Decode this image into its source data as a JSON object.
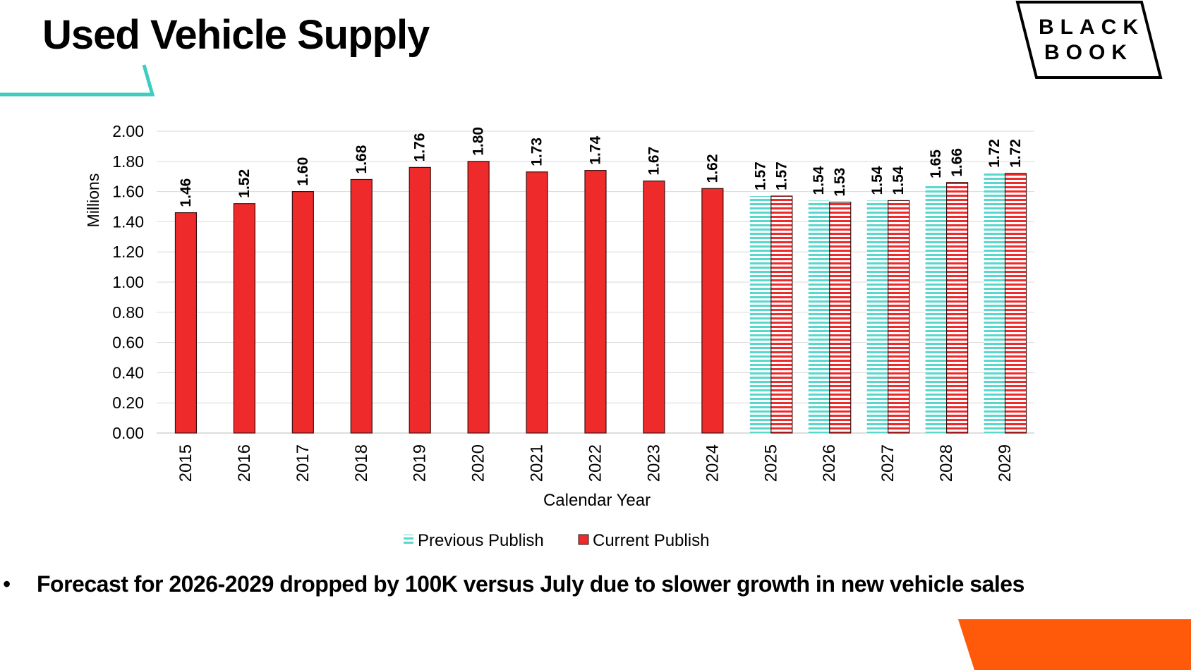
{
  "slide": {
    "title": "Used Vehicle Supply",
    "bullet_symbol": "•",
    "bullet": "Forecast for 2026-2029 dropped by 100K versus July due to slower growth in new vehicle sales"
  },
  "logo": {
    "line1": "BLACK",
    "line2": "BOOK"
  },
  "colors": {
    "accent_teal": "#3ecdc0",
    "current_red": "#ee2a2a",
    "orange": "#ff5a0a",
    "prev_stripe": "#58d8cc"
  },
  "chart_data": {
    "type": "bar",
    "title": "",
    "xlabel": "Calendar Year",
    "ylabel": "Millions",
    "ylim": [
      0,
      2.0
    ],
    "ytick_step": 0.2,
    "grid": true,
    "legend_position": "bottom-center",
    "categories": [
      "2015",
      "2016",
      "2017",
      "2018",
      "2019",
      "2020",
      "2021",
      "2022",
      "2023",
      "2024",
      "2025",
      "2026",
      "2027",
      "2028",
      "2029"
    ],
    "series": [
      {
        "name": "Previous Publish",
        "style": "striped-teal",
        "values": [
          null,
          null,
          null,
          null,
          null,
          null,
          null,
          null,
          null,
          null,
          1.57,
          1.54,
          1.54,
          1.65,
          1.72
        ]
      },
      {
        "name": "Current Publish",
        "style": "solid-red",
        "forecast_from": "2025",
        "values": [
          1.46,
          1.52,
          1.6,
          1.68,
          1.76,
          1.8,
          1.73,
          1.74,
          1.67,
          1.62,
          1.57,
          1.53,
          1.54,
          1.66,
          1.72
        ]
      }
    ]
  }
}
